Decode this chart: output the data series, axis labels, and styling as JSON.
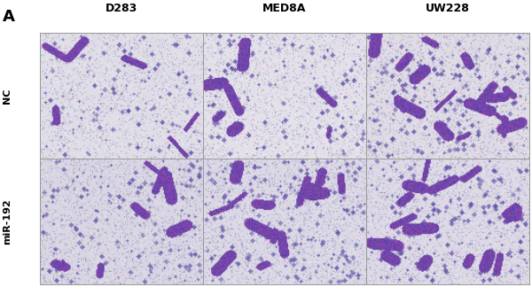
{
  "panel_label": "A",
  "col_labels": [
    "D283",
    "MED8A",
    "UW228"
  ],
  "row_labels": [
    "NC",
    "miR-192"
  ],
  "figure_bg": "#ffffff",
  "panel_label_fontsize": 13,
  "col_label_fontsize": 9,
  "row_label_fontsize": 8,
  "border_color": "#999999",
  "cells": [
    {
      "row": 0,
      "col": 0,
      "bg_r": 225,
      "bg_g": 222,
      "bg_b": 232,
      "n_tiny": 1800,
      "n_small": 120,
      "n_large": 6,
      "seed": 1
    },
    {
      "row": 0,
      "col": 1,
      "bg_r": 228,
      "bg_g": 225,
      "bg_b": 234,
      "n_tiny": 1900,
      "n_small": 130,
      "n_large": 7,
      "seed": 2
    },
    {
      "row": 0,
      "col": 2,
      "bg_r": 224,
      "bg_g": 220,
      "bg_b": 230,
      "n_tiny": 2000,
      "n_small": 200,
      "n_large": 18,
      "seed": 3
    },
    {
      "row": 1,
      "col": 0,
      "bg_r": 218,
      "bg_g": 215,
      "bg_b": 228,
      "n_tiny": 2200,
      "n_small": 160,
      "n_large": 8,
      "seed": 4
    },
    {
      "row": 1,
      "col": 1,
      "bg_r": 220,
      "bg_g": 217,
      "bg_b": 230,
      "n_tiny": 2300,
      "n_small": 210,
      "n_large": 14,
      "seed": 5
    },
    {
      "row": 1,
      "col": 2,
      "bg_r": 222,
      "bg_g": 218,
      "bg_b": 231,
      "n_tiny": 2100,
      "n_small": 190,
      "n_large": 16,
      "seed": 6
    }
  ]
}
